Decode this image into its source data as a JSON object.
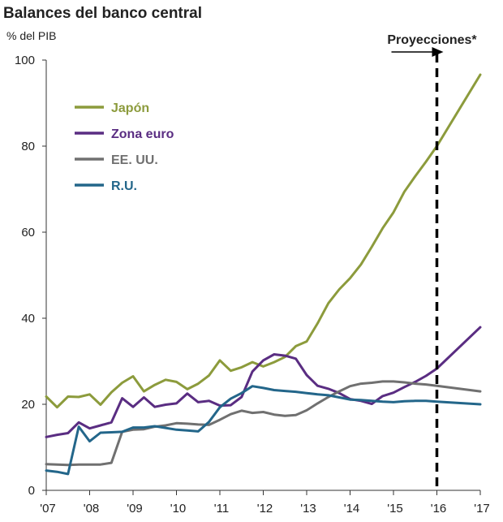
{
  "chart_data": {
    "type": "line",
    "title": "Balances del banco central",
    "subtitle": "% del PIB",
    "ylim": [
      0,
      100
    ],
    "y_ticks": [
      0,
      20,
      40,
      60,
      80,
      100
    ],
    "xlim": [
      2007,
      2017
    ],
    "x_ticks": [
      2007,
      2008,
      2009,
      2010,
      2011,
      2012,
      2013,
      2014,
      2015,
      2016,
      2017
    ],
    "x_tick_labels": [
      "'07",
      "'08",
      "'09",
      "'10",
      "'11",
      "'12",
      "'13",
      "'14",
      "'15",
      "'16",
      "'17"
    ],
    "grid": false,
    "legend_position": "top-left",
    "projection": {
      "label": "Proyecciones*",
      "x": 2016
    },
    "series": [
      {
        "name": "Japón",
        "color": "#8c9b3c",
        "points": [
          [
            2007.0,
            21.8
          ],
          [
            2007.25,
            19.3
          ],
          [
            2007.5,
            21.8
          ],
          [
            2007.75,
            21.7
          ],
          [
            2008.0,
            22.3
          ],
          [
            2008.25,
            19.9
          ],
          [
            2008.5,
            22.8
          ],
          [
            2008.75,
            25.0
          ],
          [
            2009.0,
            26.5
          ],
          [
            2009.25,
            23.0
          ],
          [
            2009.5,
            24.5
          ],
          [
            2009.75,
            25.7
          ],
          [
            2010.0,
            25.2
          ],
          [
            2010.25,
            23.5
          ],
          [
            2010.5,
            24.8
          ],
          [
            2010.75,
            26.7
          ],
          [
            2011.0,
            30.2
          ],
          [
            2011.25,
            27.8
          ],
          [
            2011.5,
            28.6
          ],
          [
            2011.75,
            29.8
          ],
          [
            2012.0,
            28.8
          ],
          [
            2012.25,
            29.8
          ],
          [
            2012.5,
            31.0
          ],
          [
            2012.75,
            33.5
          ],
          [
            2013.0,
            34.6
          ],
          [
            2013.25,
            38.8
          ],
          [
            2013.5,
            43.5
          ],
          [
            2013.75,
            46.7
          ],
          [
            2014.0,
            49.3
          ],
          [
            2014.25,
            52.5
          ],
          [
            2014.5,
            56.6
          ],
          [
            2014.75,
            60.9
          ],
          [
            2015.0,
            64.6
          ],
          [
            2015.25,
            69.4
          ],
          [
            2015.5,
            73.0
          ],
          [
            2015.75,
            76.4
          ],
          [
            2016.0,
            80.0
          ],
          [
            2017.0,
            96.6
          ]
        ]
      },
      {
        "name": "Zona euro",
        "color": "#5a2d82",
        "points": [
          [
            2007.0,
            12.4
          ],
          [
            2007.25,
            12.9
          ],
          [
            2007.5,
            13.3
          ],
          [
            2007.75,
            15.8
          ],
          [
            2008.0,
            14.4
          ],
          [
            2008.25,
            15.1
          ],
          [
            2008.5,
            15.8
          ],
          [
            2008.75,
            21.4
          ],
          [
            2009.0,
            19.4
          ],
          [
            2009.25,
            21.6
          ],
          [
            2009.5,
            19.4
          ],
          [
            2009.75,
            19.9
          ],
          [
            2010.0,
            20.2
          ],
          [
            2010.25,
            22.5
          ],
          [
            2010.5,
            20.5
          ],
          [
            2010.75,
            20.8
          ],
          [
            2011.0,
            19.7
          ],
          [
            2011.25,
            19.8
          ],
          [
            2011.5,
            21.7
          ],
          [
            2011.75,
            27.6
          ],
          [
            2012.0,
            30.2
          ],
          [
            2012.25,
            31.6
          ],
          [
            2012.5,
            31.3
          ],
          [
            2012.75,
            30.6
          ],
          [
            2013.0,
            26.8
          ],
          [
            2013.25,
            24.3
          ],
          [
            2013.5,
            23.6
          ],
          [
            2013.75,
            22.6
          ],
          [
            2014.0,
            21.2
          ],
          [
            2014.25,
            20.8
          ],
          [
            2014.5,
            20.1
          ],
          [
            2014.75,
            21.9
          ],
          [
            2015.0,
            22.7
          ],
          [
            2015.25,
            24.0
          ],
          [
            2015.5,
            25.2
          ],
          [
            2015.75,
            26.6
          ],
          [
            2016.0,
            28.3
          ],
          [
            2017.0,
            37.9
          ]
        ]
      },
      {
        "name": "EE. UU.",
        "color": "#707070",
        "points": [
          [
            2007.0,
            6.1
          ],
          [
            2007.25,
            6.0
          ],
          [
            2007.5,
            5.9
          ],
          [
            2007.75,
            6.0
          ],
          [
            2008.0,
            6.0
          ],
          [
            2008.25,
            6.0
          ],
          [
            2008.5,
            6.4
          ],
          [
            2008.75,
            13.6
          ],
          [
            2009.0,
            14.1
          ],
          [
            2009.25,
            14.2
          ],
          [
            2009.5,
            14.8
          ],
          [
            2009.75,
            15.1
          ],
          [
            2010.0,
            15.6
          ],
          [
            2010.25,
            15.5
          ],
          [
            2010.5,
            15.3
          ],
          [
            2010.75,
            15.2
          ],
          [
            2011.0,
            16.4
          ],
          [
            2011.25,
            17.7
          ],
          [
            2011.5,
            18.5
          ],
          [
            2011.75,
            18.0
          ],
          [
            2012.0,
            18.2
          ],
          [
            2012.25,
            17.6
          ],
          [
            2012.5,
            17.3
          ],
          [
            2012.75,
            17.5
          ],
          [
            2013.0,
            18.6
          ],
          [
            2013.25,
            20.2
          ],
          [
            2013.5,
            21.7
          ],
          [
            2013.75,
            23.0
          ],
          [
            2014.0,
            24.2
          ],
          [
            2014.25,
            24.8
          ],
          [
            2014.5,
            25.0
          ],
          [
            2014.75,
            25.3
          ],
          [
            2015.0,
            25.3
          ],
          [
            2015.25,
            25.1
          ],
          [
            2015.5,
            24.8
          ],
          [
            2015.75,
            24.6
          ],
          [
            2016.0,
            24.3
          ],
          [
            2017.0,
            23.0
          ]
        ]
      },
      {
        "name": "R.U.",
        "color": "#23668a",
        "points": [
          [
            2007.0,
            4.6
          ],
          [
            2007.25,
            4.3
          ],
          [
            2007.5,
            3.8
          ],
          [
            2007.75,
            14.8
          ],
          [
            2008.0,
            11.4
          ],
          [
            2008.25,
            13.4
          ],
          [
            2008.5,
            13.5
          ],
          [
            2008.75,
            13.6
          ],
          [
            2009.0,
            14.6
          ],
          [
            2009.25,
            14.6
          ],
          [
            2009.5,
            14.9
          ],
          [
            2009.75,
            14.5
          ],
          [
            2010.0,
            14.1
          ],
          [
            2010.25,
            13.9
          ],
          [
            2010.5,
            13.7
          ],
          [
            2010.75,
            15.9
          ],
          [
            2011.0,
            19.3
          ],
          [
            2011.25,
            21.3
          ],
          [
            2011.5,
            22.6
          ],
          [
            2011.75,
            24.2
          ],
          [
            2012.0,
            23.8
          ],
          [
            2012.25,
            23.3
          ],
          [
            2012.5,
            23.1
          ],
          [
            2012.75,
            22.9
          ],
          [
            2013.0,
            22.6
          ],
          [
            2013.25,
            22.3
          ],
          [
            2013.5,
            22.1
          ],
          [
            2013.75,
            21.6
          ],
          [
            2014.0,
            21.1
          ],
          [
            2014.25,
            21.0
          ],
          [
            2014.5,
            20.8
          ],
          [
            2014.75,
            20.6
          ],
          [
            2015.0,
            20.5
          ],
          [
            2015.25,
            20.7
          ],
          [
            2015.5,
            20.8
          ],
          [
            2015.75,
            20.8
          ],
          [
            2016.0,
            20.6
          ],
          [
            2017.0,
            20.0
          ]
        ]
      }
    ]
  }
}
